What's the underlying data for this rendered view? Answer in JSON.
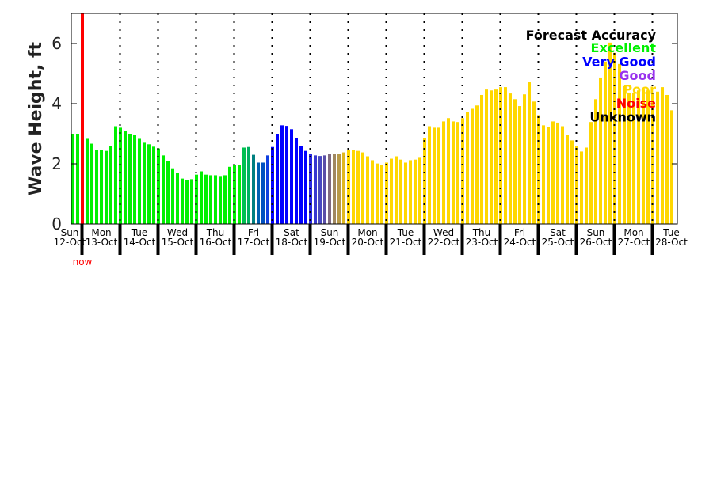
{
  "chart_data": {
    "type": "bar",
    "title": "",
    "ylabel": "Wave Height, ft",
    "xlabel": "",
    "ylim": [
      0,
      7
    ],
    "yticks": [
      0,
      2,
      4,
      6
    ],
    "x_unit": "3-hour steps",
    "now_index": 2,
    "now_label": "now",
    "days": [
      {
        "day": "Sun",
        "date": "12-Oct"
      },
      {
        "day": "Mon",
        "date": "13-Oct"
      },
      {
        "day": "Tue",
        "date": "14-Oct"
      },
      {
        "day": "Wed",
        "date": "15-Oct"
      },
      {
        "day": "Thu",
        "date": "16-Oct"
      },
      {
        "day": "Fri",
        "date": "17-Oct"
      },
      {
        "day": "Sat",
        "date": "18-Oct"
      },
      {
        "day": "Sun",
        "date": "19-Oct"
      },
      {
        "day": "Mon",
        "date": "20-Oct"
      },
      {
        "day": "Tue",
        "date": "21-Oct"
      },
      {
        "day": "Wed",
        "date": "22-Oct"
      },
      {
        "day": "Thu",
        "date": "23-Oct"
      },
      {
        "day": "Fri",
        "date": "24-Oct"
      },
      {
        "day": "Sat",
        "date": "25-Oct"
      },
      {
        "day": "Sun",
        "date": "26-Oct"
      },
      {
        "day": "Mon",
        "date": "27-Oct"
      },
      {
        "day": "Tue",
        "date": "28-Oct"
      }
    ],
    "values": [
      3.0,
      3.0,
      2.9,
      2.83,
      2.67,
      2.46,
      2.46,
      2.43,
      2.59,
      3.25,
      3.2,
      3.1,
      3.0,
      2.95,
      2.83,
      2.7,
      2.65,
      2.57,
      2.51,
      2.28,
      2.09,
      1.85,
      1.69,
      1.51,
      1.46,
      1.49,
      1.64,
      1.75,
      1.64,
      1.62,
      1.62,
      1.57,
      1.62,
      1.9,
      1.95,
      1.95,
      2.54,
      2.56,
      2.3,
      2.04,
      2.04,
      2.28,
      2.56,
      3.0,
      3.28,
      3.26,
      3.15,
      2.86,
      2.6,
      2.43,
      2.33,
      2.28,
      2.26,
      2.28,
      2.33,
      2.33,
      2.33,
      2.38,
      2.46,
      2.46,
      2.43,
      2.38,
      2.25,
      2.12,
      2.01,
      1.96,
      2.04,
      2.17,
      2.25,
      2.14,
      2.04,
      2.12,
      2.14,
      2.2,
      2.86,
      3.25,
      3.2,
      3.2,
      3.41,
      3.52,
      3.41,
      3.39,
      3.52,
      3.73,
      3.83,
      3.94,
      4.29,
      4.47,
      4.44,
      4.47,
      4.55,
      4.55,
      4.34,
      4.15,
      3.92,
      4.31,
      4.71,
      4.07,
      3.62,
      3.28,
      3.22,
      3.41,
      3.37,
      3.25,
      2.96,
      2.78,
      2.59,
      2.41,
      2.54,
      3.39,
      4.15,
      4.87,
      5.4,
      6.03,
      5.69,
      5.32,
      4.58,
      4.37,
      4.37,
      4.44,
      4.47,
      4.44,
      4.37,
      4.4,
      4.55,
      4.29,
      3.78
    ],
    "colors_by_index": {
      "0-35": "#00f000",
      "36": "#00c050",
      "37": "#00b060",
      "38": "#008080",
      "39": "#0060b0",
      "40": "#0050c0",
      "41": "#1040e0",
      "42-49": "#0000ff",
      "50": "#2828e0",
      "51": "#3838d0",
      "52": "#4848c0",
      "53": "#5a4ea8",
      "54": "#806a80",
      "55": "#a08860",
      "56": "#b89a48",
      "57": "#e0b820",
      "58-126": "#ffd700"
    },
    "legend": {
      "placement": "top-right",
      "title": "Forecast Accuracy",
      "entries": [
        {
          "label": "Excellent",
          "color": "#00f000"
        },
        {
          "label": "Very Good",
          "color": "#0000ff"
        },
        {
          "label": "Good",
          "color": "#9933ee"
        },
        {
          "label": "Poor",
          "color": "#ffd700"
        },
        {
          "label": "Noise",
          "color": "#ff0000"
        },
        {
          "label": "Unknown",
          "color": "#000000"
        }
      ]
    }
  }
}
